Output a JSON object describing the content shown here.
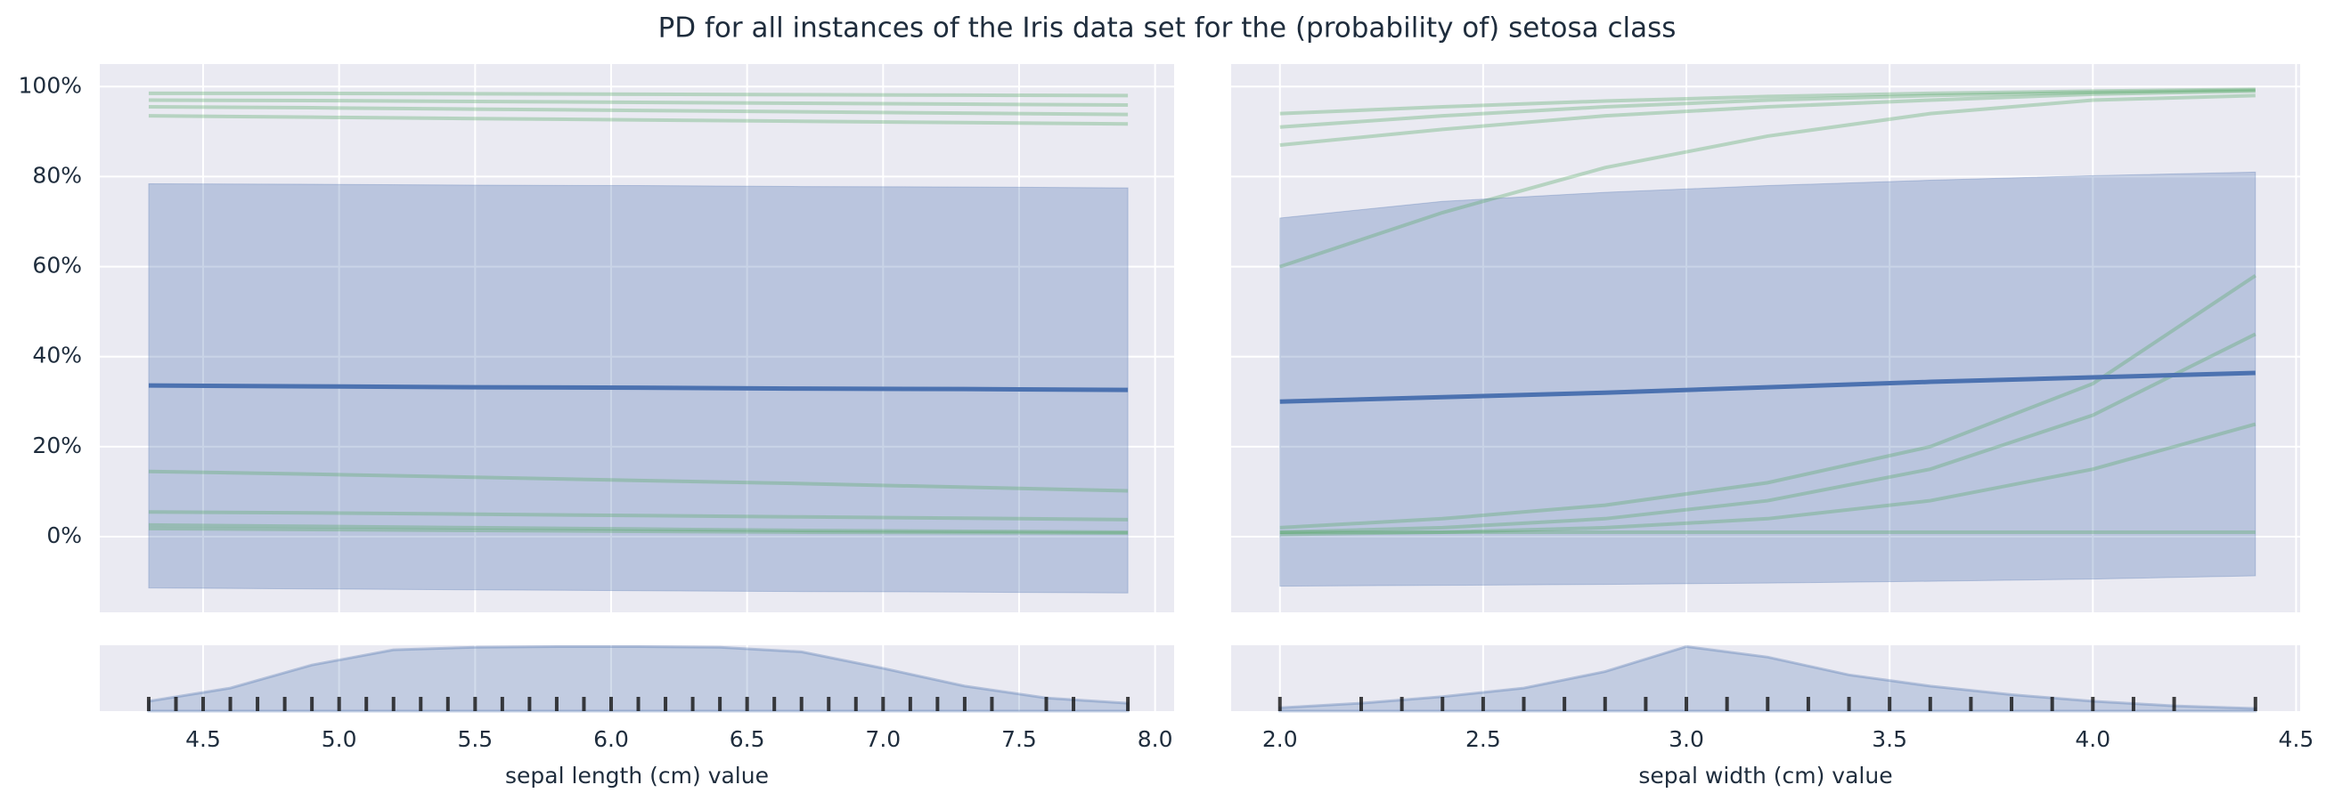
{
  "title": "PD for all instances of the Iris data set for the (probability of) setosa class",
  "chart_data": [
    {
      "type": "line",
      "x": [
        4.3,
        4.9,
        5.5,
        6.1,
        6.7,
        7.3,
        7.9
      ],
      "xlim": [
        4.12,
        8.07
      ],
      "ylim": [
        -16.8,
        105
      ],
      "yticks": [
        {
          "value": 0,
          "label": "0%"
        },
        {
          "value": 20,
          "label": "20%"
        },
        {
          "value": 40,
          "label": "40%"
        },
        {
          "value": 60,
          "label": "60%"
        },
        {
          "value": 80,
          "label": "80%"
        },
        {
          "value": 100,
          "label": "100%"
        }
      ],
      "grid": true,
      "series": [
        {
          "color": "#4c72b0",
          "values": [
            33.6,
            33.4,
            33.2,
            33.1,
            32.9,
            32.8,
            32.6
          ]
        }
      ],
      "band": {
        "color": "#4c72b0",
        "upper": [
          78.4,
          78.3,
          78.1,
          78.0,
          77.8,
          77.7,
          77.5
        ],
        "lower": [
          -11.4,
          -11.6,
          -11.8,
          -12.0,
          -12.2,
          -12.3,
          -12.5
        ]
      },
      "ice": {
        "color": "#55a868",
        "lines": [
          [
            98.5,
            98.5,
            98.4,
            98.3,
            98.2,
            98.1,
            98.0
          ],
          [
            97.0,
            96.9,
            96.7,
            96.5,
            96.3,
            96.1,
            95.9
          ],
          [
            95.5,
            95.3,
            95.0,
            94.7,
            94.4,
            94.1,
            93.8
          ],
          [
            93.5,
            93.2,
            92.9,
            92.6,
            92.3,
            92.0,
            91.7
          ],
          [
            2.6,
            2.3,
            2.0,
            1.7,
            1.4,
            1.2,
            1.0
          ],
          [
            1.8,
            1.6,
            1.4,
            1.2,
            1.0,
            0.9,
            0.8
          ],
          [
            14.5,
            13.9,
            13.2,
            12.5,
            11.8,
            11.0,
            10.2
          ],
          [
            5.5,
            5.3,
            5.0,
            4.7,
            4.4,
            4.1,
            3.8
          ]
        ]
      }
    },
    {
      "type": "density",
      "x": [
        4.3,
        4.6,
        4.9,
        5.2,
        5.5,
        5.8,
        6.1,
        6.4,
        6.7,
        7.0,
        7.3,
        7.6,
        7.9
      ],
      "xlim": [
        4.12,
        8.07
      ],
      "ylim": [
        0,
        1
      ],
      "values": [
        0.15,
        0.35,
        0.7,
        0.93,
        0.97,
        0.98,
        0.98,
        0.97,
        0.9,
        0.65,
        0.38,
        0.2,
        0.12
      ],
      "color": "#4c72b0",
      "xticks": [
        4.5,
        {
          "value": 5,
          "label": "5.0"
        },
        5.5,
        {
          "value": 6,
          "label": "6.0"
        },
        6.5,
        {
          "value": 7,
          "label": "7.0"
        },
        7.5,
        {
          "value": 8,
          "label": "8.0"
        }
      ],
      "rug": [
        4.3,
        4.4,
        4.5,
        4.6,
        4.7,
        4.8,
        4.9,
        5.0,
        5.1,
        5.2,
        5.3,
        5.4,
        5.5,
        5.6,
        5.7,
        5.8,
        5.9,
        6.0,
        6.1,
        6.2,
        6.3,
        6.4,
        6.5,
        6.6,
        6.7,
        6.8,
        6.9,
        7.0,
        7.1,
        7.2,
        7.3,
        7.4,
        7.6,
        7.7,
        7.9
      ],
      "xlabel": "sepal length (cm) value"
    },
    {
      "type": "line",
      "x": [
        2.0,
        2.4,
        2.8,
        3.2,
        3.6,
        4.0,
        4.4
      ],
      "xlim": [
        1.88,
        4.51
      ],
      "ylim": [
        -16.8,
        105
      ],
      "grid": true,
      "series": [
        {
          "color": "#4c72b0",
          "values": [
            30.0,
            31.0,
            32.0,
            33.2,
            34.4,
            35.4,
            36.4
          ]
        }
      ],
      "band": {
        "color": "#4c72b0",
        "upper": [
          70.8,
          74.5,
          76.5,
          78.0,
          79.2,
          80.2,
          81.0
        ],
        "lower": [
          -11.0,
          -10.8,
          -10.6,
          -10.3,
          -9.9,
          -9.4,
          -8.7
        ]
      },
      "ice": {
        "color": "#55a868",
        "lines": [
          [
            87.0,
            90.5,
            93.5,
            95.5,
            97.0,
            98.3,
            99.0
          ],
          [
            91.0,
            93.5,
            95.5,
            97.0,
            98.0,
            98.7,
            99.2
          ],
          [
            60.0,
            72.0,
            82.0,
            89.0,
            94.0,
            97.0,
            98.0
          ],
          [
            94.0,
            95.5,
            96.8,
            97.8,
            98.5,
            99.0,
            99.4
          ],
          [
            1.0,
            1.0,
            1.0,
            1.0,
            1.0,
            1.0,
            1.0
          ],
          [
            2.0,
            4.0,
            7.0,
            12.0,
            20.0,
            34.0,
            58.0
          ],
          [
            1.0,
            2.0,
            4.0,
            8.0,
            15.0,
            27.0,
            45.0
          ],
          [
            0.5,
            1.0,
            2.0,
            4.0,
            8.0,
            15.0,
            25.0
          ]
        ]
      }
    },
    {
      "type": "density",
      "x": [
        2.0,
        2.2,
        2.4,
        2.6,
        2.8,
        3.0,
        3.2,
        3.4,
        3.6,
        3.8,
        4.0,
        4.2,
        4.4
      ],
      "xlim": [
        1.88,
        4.51
      ],
      "ylim": [
        0,
        1
      ],
      "values": [
        0.05,
        0.12,
        0.22,
        0.35,
        0.6,
        0.98,
        0.82,
        0.55,
        0.38,
        0.25,
        0.15,
        0.08,
        0.04
      ],
      "color": "#4c72b0",
      "xticks": [
        {
          "value": 2,
          "label": "2.0"
        },
        2.5,
        {
          "value": 3,
          "label": "3.0"
        },
        3.5,
        {
          "value": 4,
          "label": "4.0"
        },
        4.5
      ],
      "rug": [
        2.0,
        2.2,
        2.3,
        2.4,
        2.5,
        2.6,
        2.7,
        2.8,
        2.9,
        3.0,
        3.1,
        3.2,
        3.3,
        3.4,
        3.5,
        3.6,
        3.7,
        3.8,
        3.9,
        4.0,
        4.1,
        4.2,
        4.4
      ],
      "xlabel": "sepal width (cm) value"
    }
  ]
}
